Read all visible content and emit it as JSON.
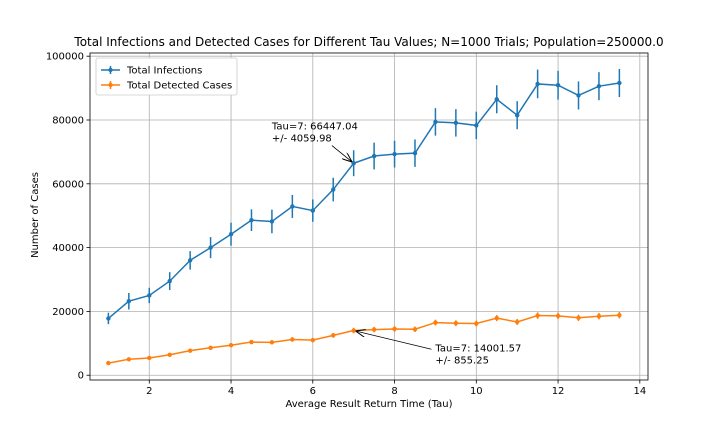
{
  "chart_data": {
    "type": "line",
    "title": "Total Infections and Detected Cases for Different Tau Values; N=1000 Trials; Population=250000.0",
    "xlabel": "Average Result Return Time (Tau)",
    "ylabel": "Number of Cases",
    "xlim": [
      0.55,
      14.2
    ],
    "ylim": [
      -1500,
      101000
    ],
    "xticks": [
      2,
      4,
      6,
      8,
      10,
      12,
      14
    ],
    "yticks": [
      0,
      20000,
      40000,
      60000,
      80000,
      100000
    ],
    "grid": true,
    "legend_position": "top-left",
    "x": [
      1.0,
      1.5,
      2.0,
      2.5,
      3.0,
      3.5,
      4.0,
      4.5,
      5.0,
      5.5,
      6.0,
      6.5,
      7.0,
      7.5,
      8.0,
      8.5,
      9.0,
      9.5,
      10.0,
      10.5,
      11.0,
      11.5,
      12.0,
      12.5,
      13.0,
      13.5
    ],
    "series": [
      {
        "name": "Total Infections",
        "color": "#1f77b4",
        "values": [
          17800,
          23200,
          25000,
          29500,
          36000,
          40000,
          44200,
          48600,
          48200,
          52900,
          51600,
          58200,
          66447.04,
          68700,
          69300,
          69600,
          79400,
          79100,
          78300,
          86500,
          81500,
          91300,
          90900,
          87700,
          90600,
          91600
        ],
        "errors": [
          1800,
          2600,
          2400,
          2800,
          2900,
          3300,
          3600,
          3400,
          3700,
          3600,
          3500,
          3700,
          4059.98,
          4200,
          4200,
          4300,
          4300,
          4300,
          4300,
          4400,
          4400,
          4500,
          4500,
          4400,
          4400,
          4400
        ]
      },
      {
        "name": "Total Detected Cases",
        "color": "#ff7f0e",
        "values": [
          3800,
          5000,
          5400,
          6400,
          7700,
          8600,
          9400,
          10400,
          10300,
          11200,
          11000,
          12500,
          14001.57,
          14300,
          14500,
          14400,
          16500,
          16300,
          16200,
          17900,
          16700,
          18700,
          18600,
          18000,
          18500,
          18800
        ],
        "errors": [
          300,
          400,
          400,
          450,
          500,
          550,
          600,
          650,
          650,
          700,
          700,
          750,
          855.25,
          850,
          850,
          850,
          900,
          900,
          900,
          950,
          950,
          1000,
          1000,
          1000,
          1000,
          1000
        ]
      }
    ],
    "annotations": [
      {
        "line1": "Tau=7: 66447.04",
        "line2": "+/- 4059.98",
        "x": 7,
        "y": 66447.04,
        "text_x": 5.0,
        "text_y": 77000,
        "series": 0
      },
      {
        "line1": "Tau=7: 14001.57",
        "line2": "+/- 855.25",
        "x": 7,
        "y": 14001.57,
        "text_x": 9.0,
        "text_y": 7500,
        "series": 1
      }
    ]
  }
}
